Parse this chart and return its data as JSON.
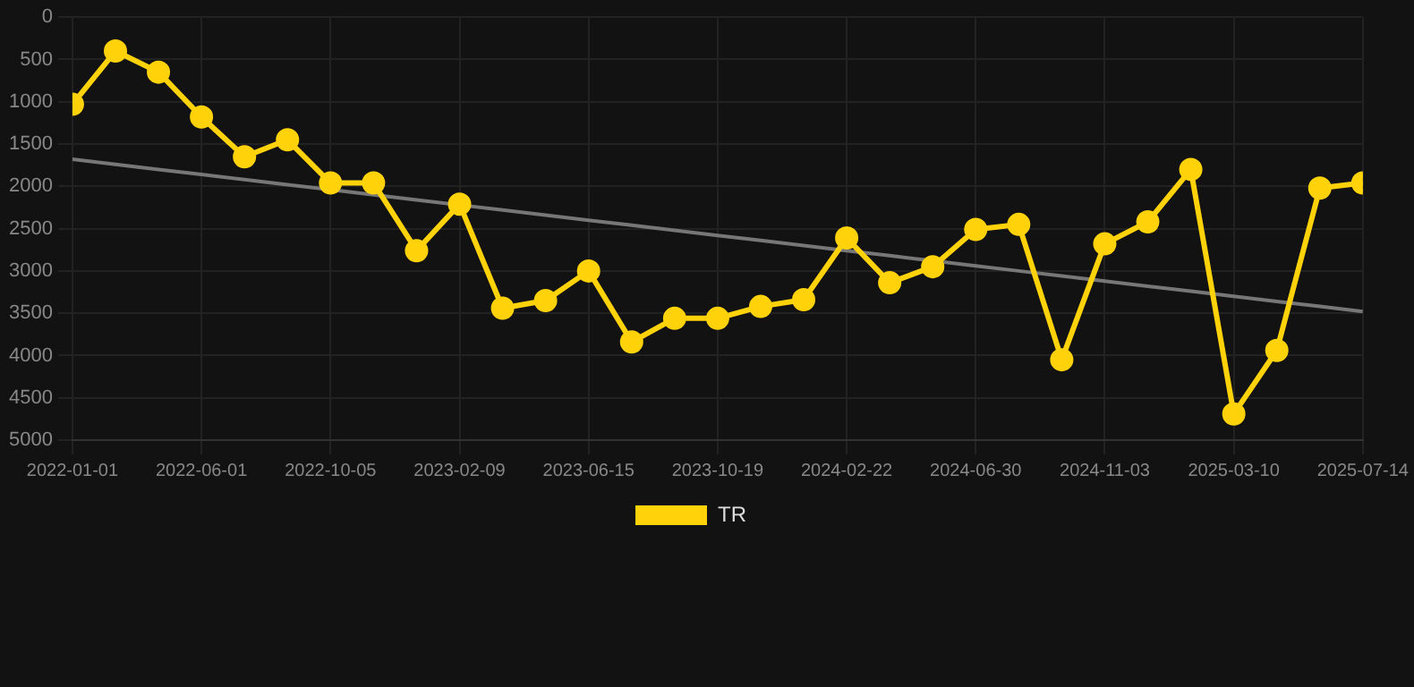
{
  "chart_data": {
    "type": "line",
    "categories": [
      "2022-01-01",
      null,
      null,
      "2022-06-01",
      null,
      null,
      "2022-10-05",
      null,
      null,
      "2023-02-09",
      null,
      null,
      "2023-06-15",
      null,
      null,
      "2023-10-19",
      null,
      null,
      "2024-02-22",
      null,
      null,
      "2024-06-30",
      null,
      null,
      "2024-11-03",
      null,
      null,
      "2025-03-10",
      null,
      null,
      "2025-07-14"
    ],
    "series": [
      {
        "name": "TR",
        "color": "#ffd20a",
        "marker": "circle",
        "line_style": "solid",
        "values": [
          1030,
          400,
          650,
          1180,
          1650,
          1450,
          1960,
          1960,
          2760,
          2210,
          3440,
          3350,
          3000,
          3840,
          3560,
          3560,
          3420,
          3340,
          2610,
          3140,
          2950,
          2510,
          2450,
          4050,
          2680,
          2420,
          1800,
          4690,
          3940,
          2020,
          1960
        ]
      },
      {
        "type": "line",
        "color": "#777777",
        "marker": "none",
        "line_style": "solid",
        "values": [
          1680,
          1740,
          1800,
          1860,
          1920,
          1980,
          2040,
          2100,
          2160,
          2220,
          2280,
          2340,
          2400,
          2460,
          2520,
          2580,
          2640,
          2700,
          2760,
          2820,
          2880,
          2940,
          3000,
          3060,
          3120,
          3180,
          3240,
          3300,
          3360,
          3420,
          3480
        ]
      }
    ],
    "ylim": [
      5000,
      0
    ],
    "yticks": [
      0,
      500,
      1000,
      1500,
      2000,
      2500,
      3000,
      3500,
      4000,
      4500,
      5000
    ],
    "grid": true,
    "legend": "bottom"
  }
}
